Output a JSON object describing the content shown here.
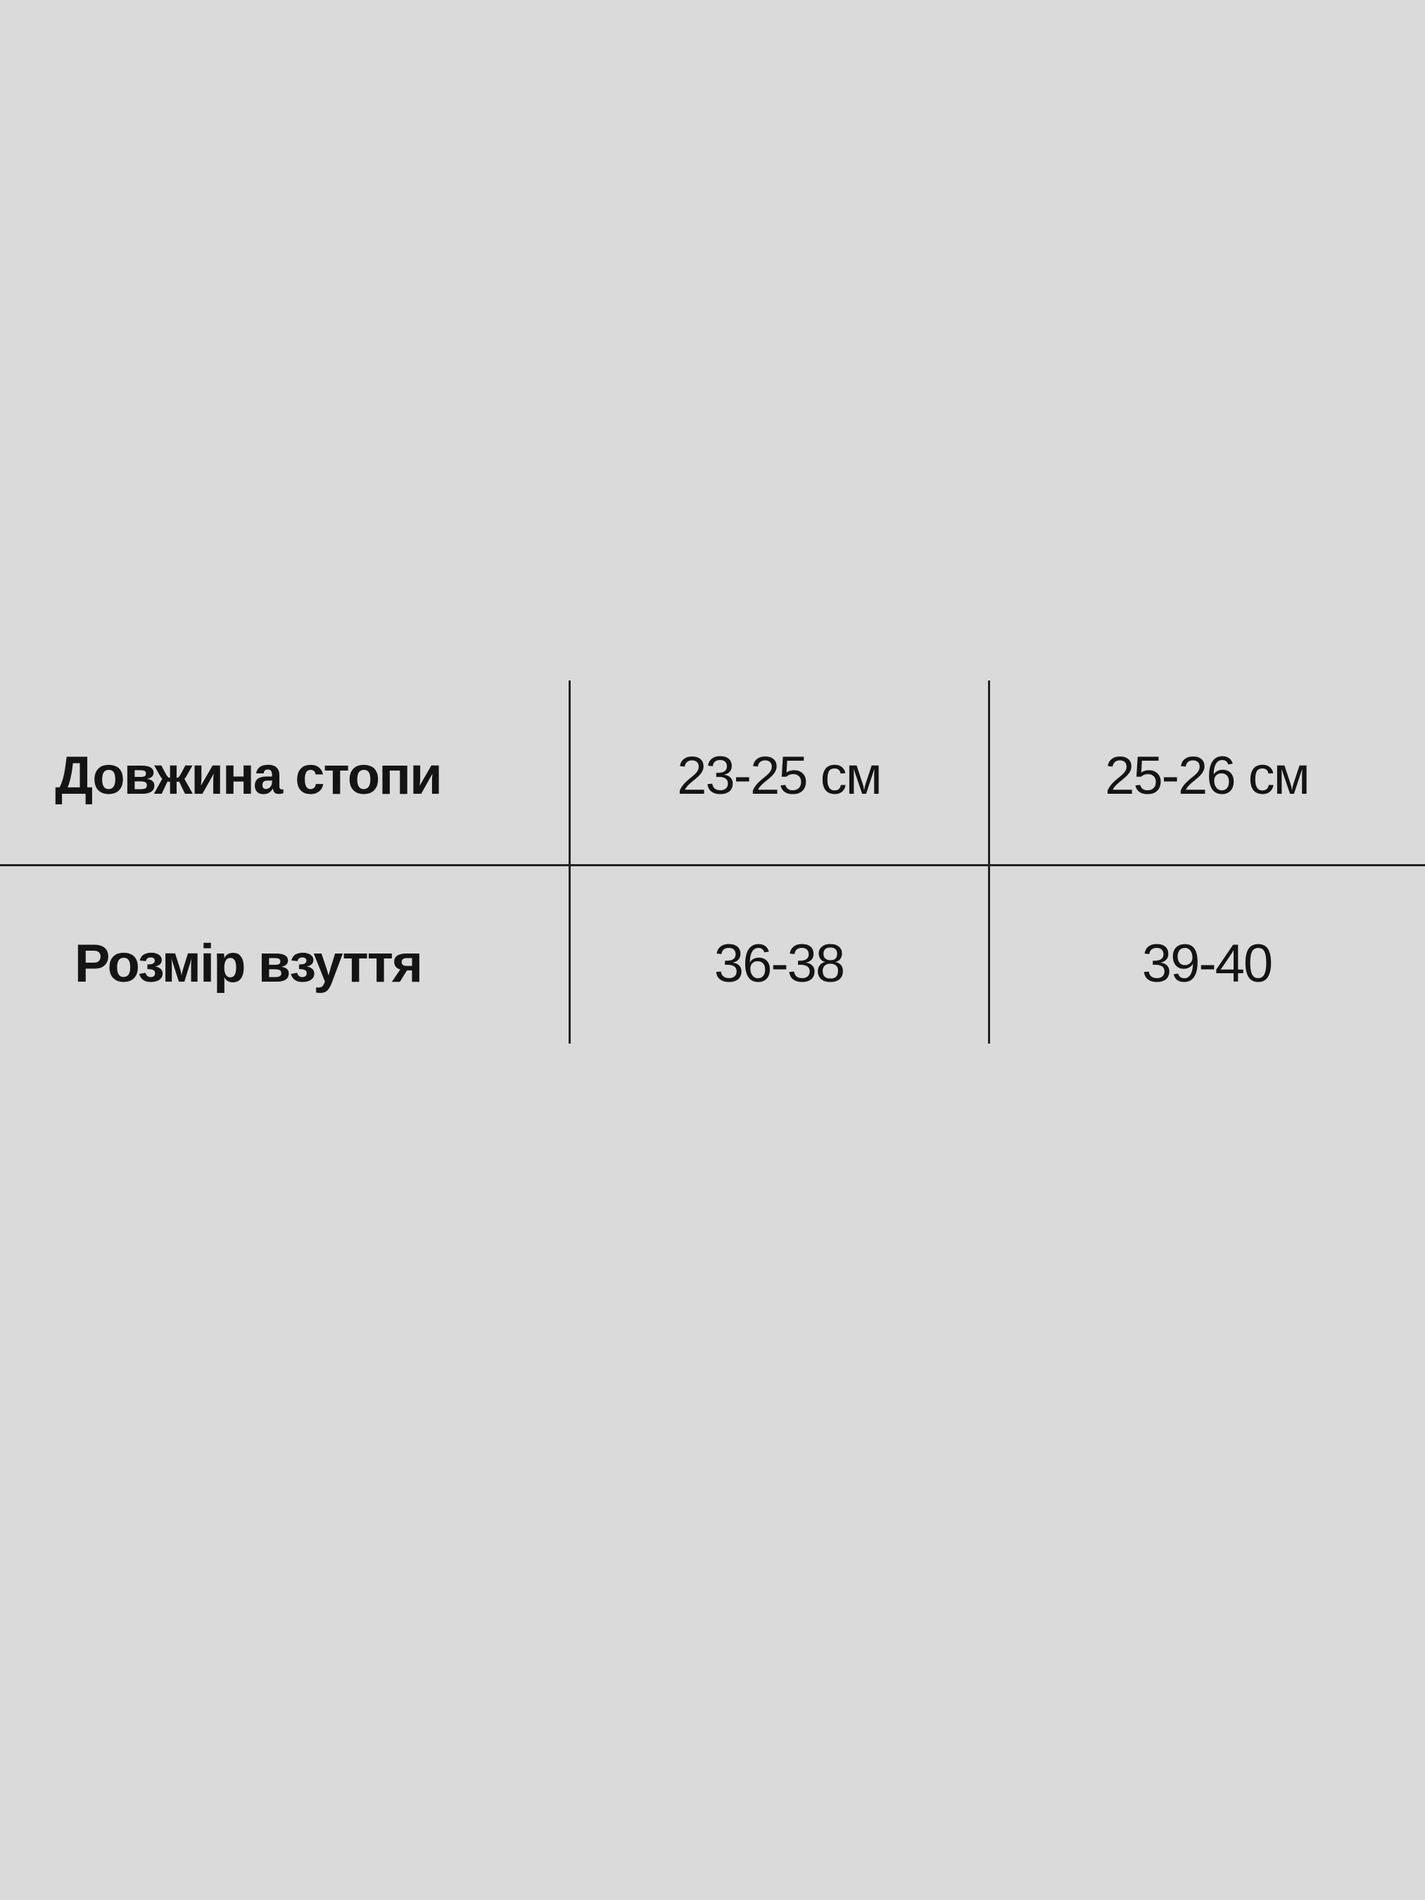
{
  "table": {
    "rows": [
      {
        "label": "Довжина стопи",
        "values": [
          "23-25 см",
          "25-26 см"
        ]
      },
      {
        "label": "Розмір взуття",
        "values": [
          "36-38",
          "39-40"
        ]
      }
    ]
  },
  "colors": {
    "background": "#dadada",
    "text": "#141414",
    "lines": "#222222"
  }
}
